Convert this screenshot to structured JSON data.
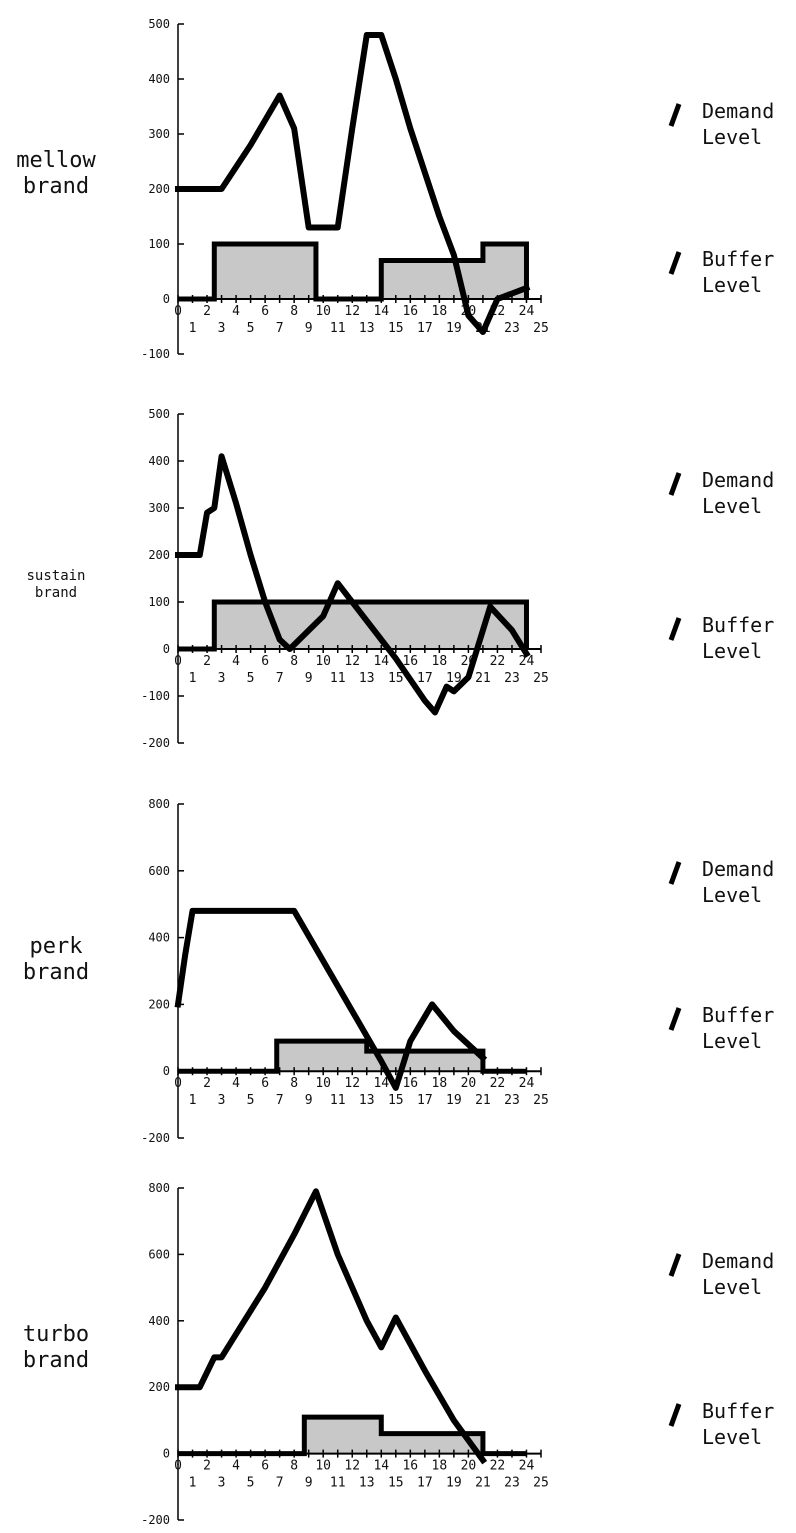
{
  "legend": {
    "demand": [
      "Demand",
      "Level"
    ],
    "buffer": [
      "Buffer",
      "Level"
    ]
  },
  "colors": {
    "demand_line": "#000000",
    "buffer_fill": "#c8c8c8",
    "buffer_stroke": "#000000",
    "axis": "#000000"
  },
  "chart_data": [
    {
      "type": "line",
      "brand": [
        "mellow",
        "brand"
      ],
      "x_tick_labels": [
        "0",
        "1",
        "2",
        "3",
        "4",
        "5",
        "6",
        "7",
        "8",
        "9",
        "10",
        "11",
        "12",
        "13",
        "14",
        "15",
        "16",
        "17",
        "18",
        "19",
        "20",
        "21",
        "22",
        "23",
        "24",
        "25"
      ],
      "xlim": [
        0,
        25
      ],
      "ylim": [
        -100,
        500
      ],
      "yticks": [
        -100,
        0,
        100,
        200,
        300,
        400,
        500
      ],
      "series": [
        {
          "name": "Demand Level",
          "x": [
            0,
            2,
            3,
            5,
            7,
            8,
            9,
            10,
            11,
            12,
            13,
            14,
            15,
            16,
            17,
            18,
            19,
            20,
            21,
            22,
            23,
            24
          ],
          "values": [
            200,
            200,
            200,
            280,
            370,
            310,
            130,
            130,
            130,
            310,
            480,
            480,
            400,
            310,
            230,
            150,
            80,
            -30,
            -60,
            0,
            10,
            20
          ]
        },
        {
          "name": "Buffer Level",
          "x": [
            0,
            2.5,
            2.5,
            9.5,
            9.5,
            14,
            14,
            21,
            21,
            24,
            24
          ],
          "values": [
            0,
            0,
            100,
            100,
            0,
            0,
            70,
            70,
            100,
            100,
            0
          ]
        }
      ]
    },
    {
      "type": "line",
      "brand": [
        "sustain",
        "brand"
      ],
      "x_tick_labels": [
        "0",
        "1",
        "2",
        "3",
        "4",
        "5",
        "6",
        "7",
        "8",
        "9",
        "10",
        "11",
        "12",
        "13",
        "14",
        "15",
        "16",
        "17",
        "18",
        "19",
        "20",
        "21",
        "22",
        "23",
        "24",
        "25"
      ],
      "xlim": [
        0,
        25
      ],
      "ylim": [
        -200,
        500
      ],
      "yticks": [
        -200,
        -100,
        0,
        100,
        200,
        300,
        400,
        500
      ],
      "series": [
        {
          "name": "Demand Level",
          "x": [
            0,
            1.5,
            2,
            2.5,
            3,
            4,
            5,
            6,
            7,
            7.7,
            10,
            11,
            13,
            15,
            17,
            17.7,
            18.5,
            19,
            20,
            21.5,
            23,
            24
          ],
          "values": [
            200,
            200,
            290,
            300,
            410,
            310,
            200,
            100,
            20,
            0,
            70,
            140,
            60,
            -20,
            -110,
            -135,
            -80,
            -90,
            -60,
            90,
            40,
            -10
          ]
        },
        {
          "name": "Buffer Level",
          "x": [
            0,
            2.5,
            2.5,
            24,
            24
          ],
          "values": [
            0,
            0,
            100,
            100,
            0
          ]
        }
      ]
    },
    {
      "type": "line",
      "brand": [
        "perk",
        "brand"
      ],
      "x_tick_labels": [
        "0",
        "1",
        "2",
        "3",
        "4",
        "5",
        "6",
        "7",
        "8",
        "9",
        "10",
        "11",
        "12",
        "13",
        "14",
        "15",
        "16",
        "17",
        "18",
        "19",
        "20",
        "21",
        "22",
        "23",
        "24",
        "25"
      ],
      "xlim": [
        0,
        25
      ],
      "ylim": [
        -200,
        800
      ],
      "yticks": [
        -200,
        0,
        200,
        400,
        600,
        800
      ],
      "series": [
        {
          "name": "Demand Level",
          "x": [
            0,
            0.5,
            1,
            3,
            5,
            8,
            10,
            12,
            14,
            15,
            16,
            17.5,
            19,
            21
          ],
          "values": [
            200,
            350,
            480,
            480,
            480,
            480,
            330,
            180,
            30,
            -50,
            90,
            200,
            120,
            40
          ]
        },
        {
          "name": "Buffer Level",
          "x": [
            0,
            6.8,
            6.8,
            13,
            13,
            21,
            21,
            24
          ],
          "values": [
            0,
            0,
            90,
            90,
            60,
            60,
            0,
            0
          ]
        }
      ]
    },
    {
      "type": "line",
      "brand": [
        "turbo",
        "brand"
      ],
      "x_tick_labels": [
        "0",
        "1",
        "2",
        "3",
        "4",
        "5",
        "6",
        "7",
        "8",
        "9",
        "10",
        "11",
        "12",
        "13",
        "14",
        "15",
        "16",
        "17",
        "18",
        "19",
        "20",
        "21",
        "22",
        "23",
        "24",
        "25"
      ],
      "xlim": [
        0,
        25
      ],
      "ylim": [
        -200,
        800
      ],
      "yticks": [
        -200,
        0,
        200,
        400,
        600,
        800
      ],
      "series": [
        {
          "name": "Demand Level",
          "x": [
            0,
            1.5,
            2.5,
            3,
            4,
            6,
            8,
            9.5,
            11,
            13,
            14,
            15,
            17,
            19,
            21
          ],
          "values": [
            200,
            200,
            290,
            290,
            360,
            500,
            660,
            790,
            600,
            400,
            320,
            410,
            250,
            100,
            -20
          ]
        },
        {
          "name": "Buffer Level",
          "x": [
            0,
            8.7,
            8.7,
            14,
            14,
            21,
            21,
            24
          ],
          "values": [
            0,
            0,
            110,
            110,
            60,
            60,
            0,
            0
          ]
        }
      ]
    }
  ]
}
